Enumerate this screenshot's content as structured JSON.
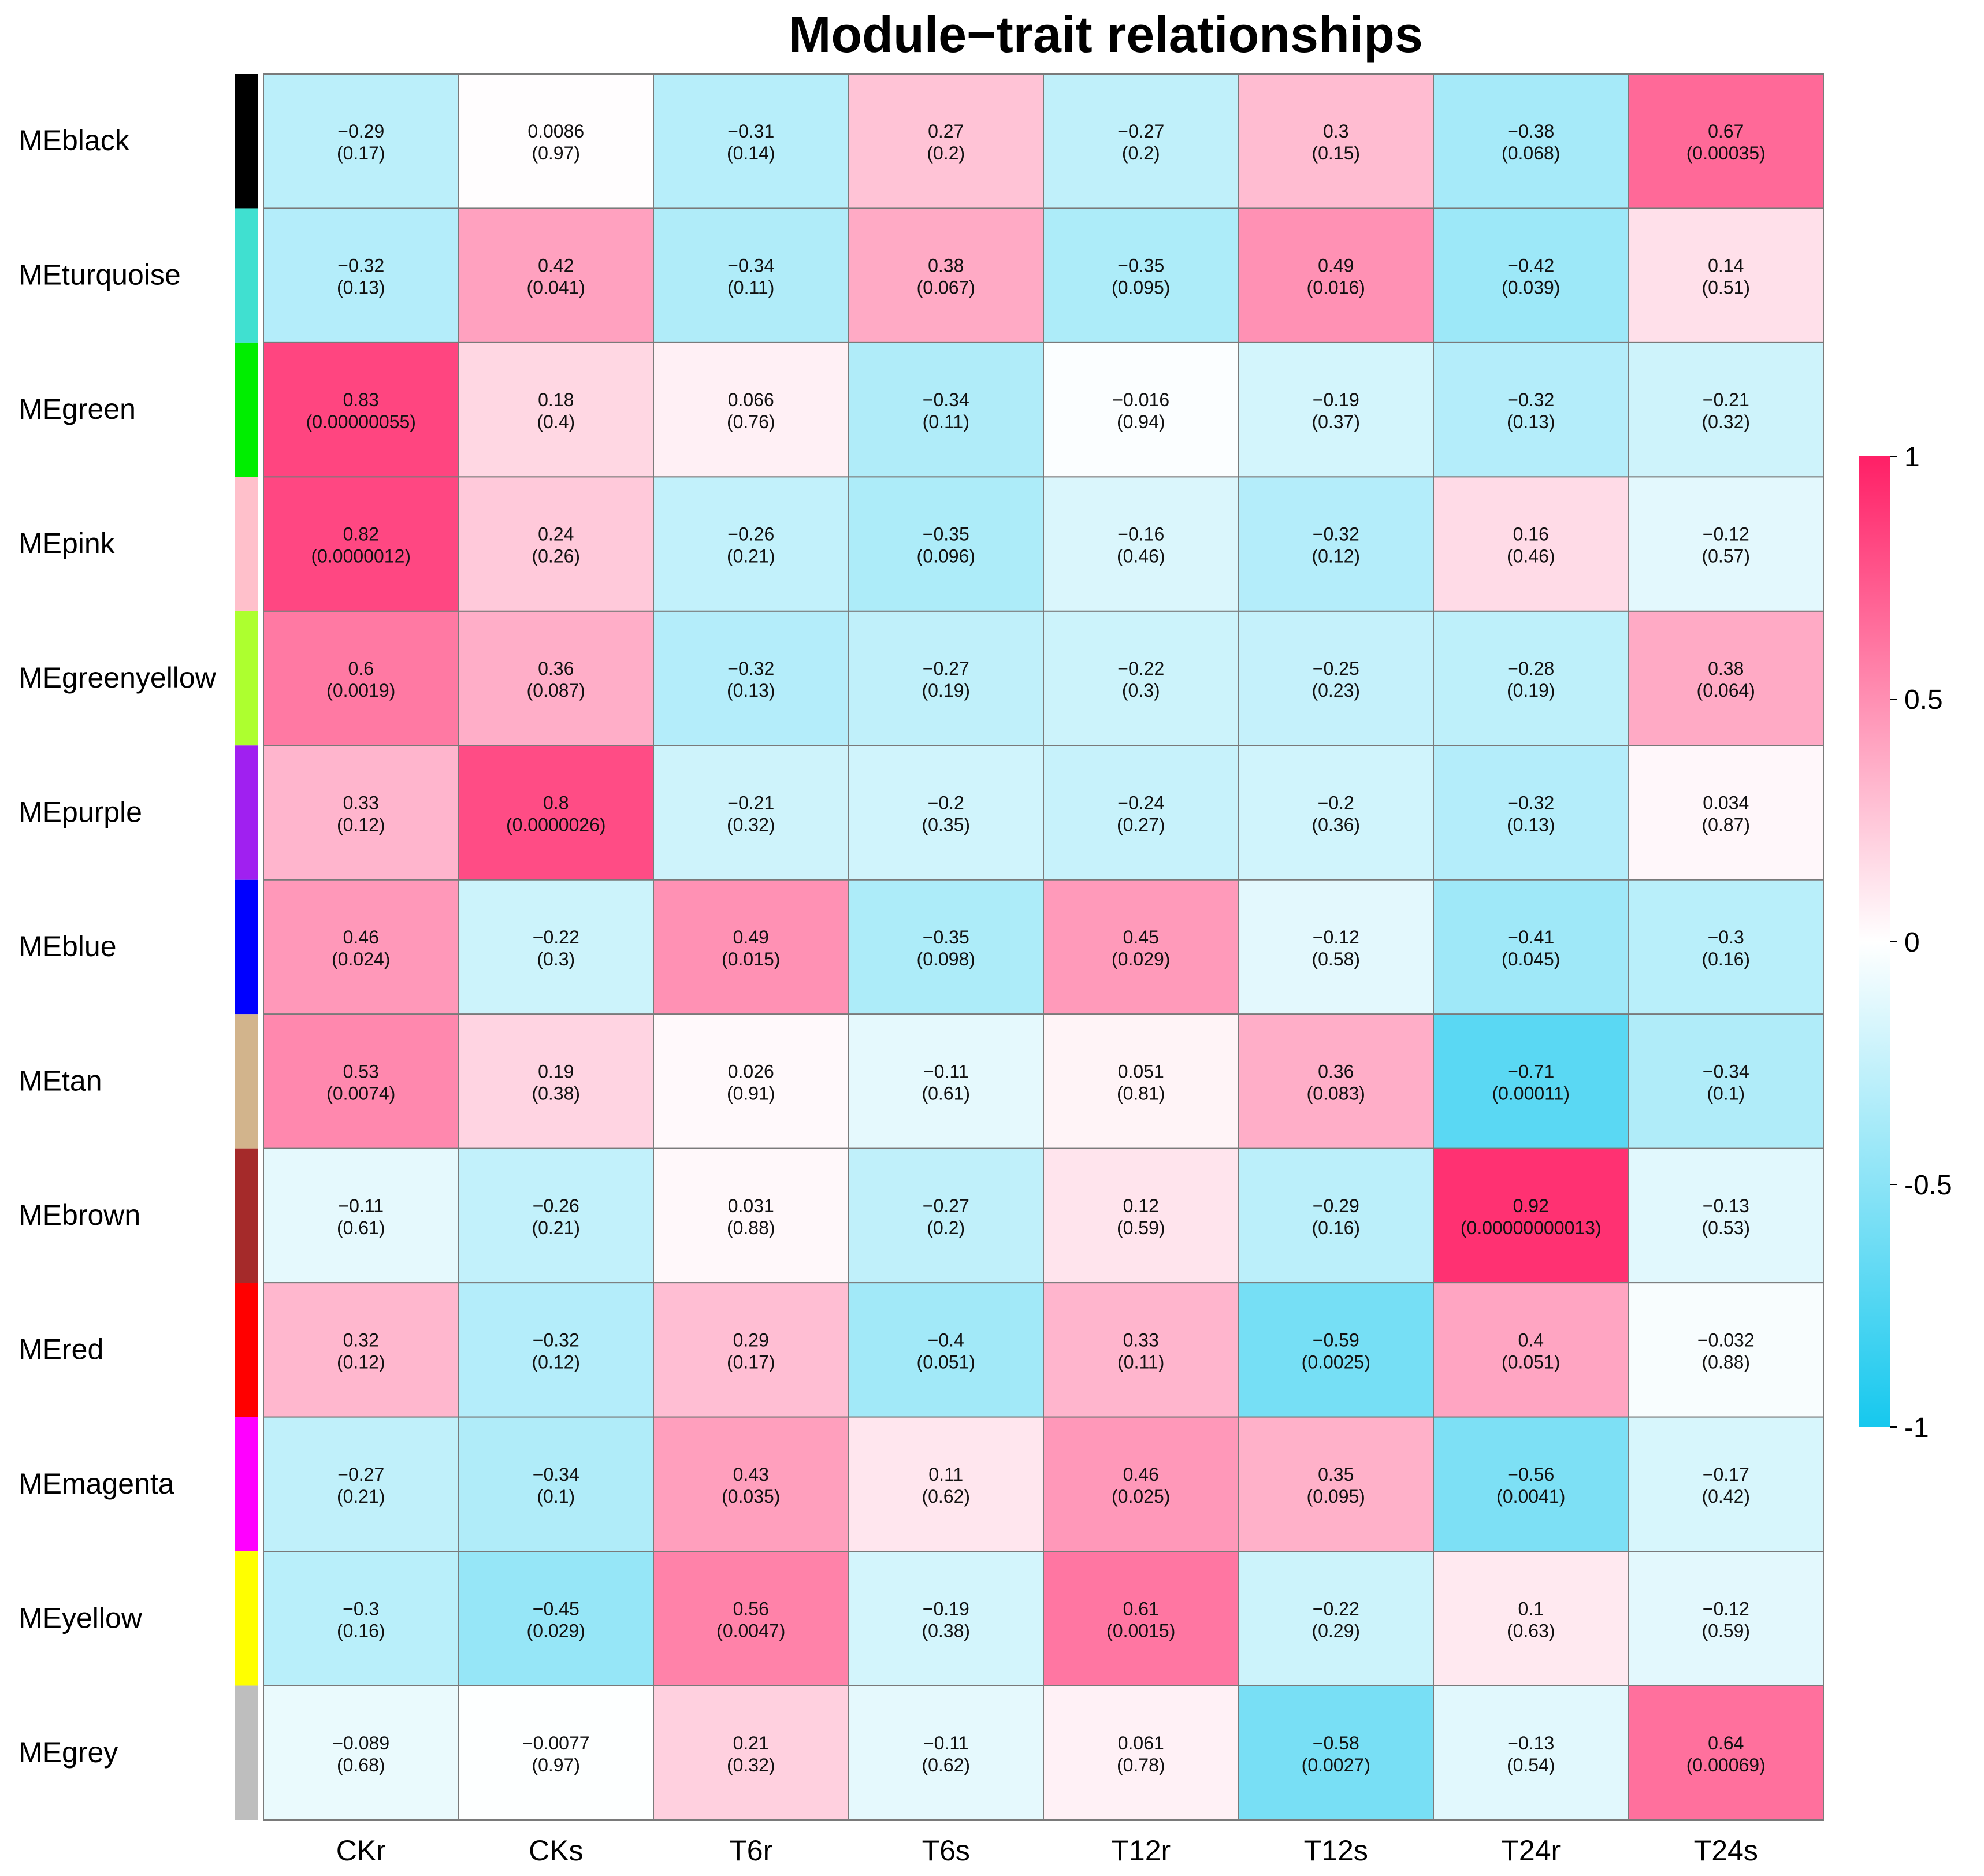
{
  "chart_data": {
    "type": "heatmap",
    "title": "Module−trait relationships",
    "xlabel": "",
    "ylabel": "",
    "columns": [
      "CKr",
      "CKs",
      "T6r",
      "T6s",
      "T12r",
      "T12s",
      "T24r",
      "T24s"
    ],
    "rows": [
      {
        "label": "MEblack",
        "color": "#000000",
        "corr": [
          -0.29,
          0.0086,
          -0.31,
          0.27,
          -0.27,
          0.3,
          -0.38,
          0.67
        ],
        "corr_text": [
          "−0.29",
          "0.0086",
          "−0.31",
          "0.27",
          "−0.27",
          "0.3",
          "−0.38",
          "0.67"
        ],
        "p_text": [
          "(0.17)",
          "(0.97)",
          "(0.14)",
          "(0.2)",
          "(0.2)",
          "(0.15)",
          "(0.068)",
          "(0.00035)"
        ]
      },
      {
        "label": "MEturquoise",
        "color": "#40E0D0",
        "corr": [
          -0.32,
          0.42,
          -0.34,
          0.38,
          -0.35,
          0.49,
          -0.42,
          0.14
        ],
        "corr_text": [
          "−0.32",
          "0.42",
          "−0.34",
          "0.38",
          "−0.35",
          "0.49",
          "−0.42",
          "0.14"
        ],
        "p_text": [
          "(0.13)",
          "(0.041)",
          "(0.11)",
          "(0.067)",
          "(0.095)",
          "(0.016)",
          "(0.039)",
          "(0.51)"
        ]
      },
      {
        "label": "MEgreen",
        "color": "#00EE00",
        "corr": [
          0.83,
          0.18,
          0.066,
          -0.34,
          -0.016,
          -0.19,
          -0.32,
          -0.21
        ],
        "corr_text": [
          "0.83",
          "0.18",
          "0.066",
          "−0.34",
          "−0.016",
          "−0.19",
          "−0.32",
          "−0.21"
        ],
        "p_text": [
          "(0.00000055)",
          "(0.4)",
          "(0.76)",
          "(0.11)",
          "(0.94)",
          "(0.37)",
          "(0.13)",
          "(0.32)"
        ]
      },
      {
        "label": "MEpink",
        "color": "#FFC0CB",
        "corr": [
          0.82,
          0.24,
          -0.26,
          -0.35,
          -0.16,
          -0.32,
          0.16,
          -0.12
        ],
        "corr_text": [
          "0.82",
          "0.24",
          "−0.26",
          "−0.35",
          "−0.16",
          "−0.32",
          "0.16",
          "−0.12"
        ],
        "p_text": [
          "(0.0000012)",
          "(0.26)",
          "(0.21)",
          "(0.096)",
          "(0.46)",
          "(0.12)",
          "(0.46)",
          "(0.57)"
        ]
      },
      {
        "label": "MEgreenyellow",
        "color": "#ADFF2F",
        "corr": [
          0.6,
          0.36,
          -0.32,
          -0.27,
          -0.22,
          -0.25,
          -0.28,
          0.38
        ],
        "corr_text": [
          "0.6",
          "0.36",
          "−0.32",
          "−0.27",
          "−0.22",
          "−0.25",
          "−0.28",
          "0.38"
        ],
        "p_text": [
          "(0.0019)",
          "(0.087)",
          "(0.13)",
          "(0.19)",
          "(0.3)",
          "(0.23)",
          "(0.19)",
          "(0.064)"
        ]
      },
      {
        "label": "MEpurple",
        "color": "#A020F0",
        "corr": [
          0.33,
          0.8,
          -0.21,
          -0.2,
          -0.24,
          -0.2,
          -0.32,
          0.034
        ],
        "corr_text": [
          "0.33",
          "0.8",
          "−0.21",
          "−0.2",
          "−0.24",
          "−0.2",
          "−0.32",
          "0.034"
        ],
        "p_text": [
          "(0.12)",
          "(0.0000026)",
          "(0.32)",
          "(0.35)",
          "(0.27)",
          "(0.36)",
          "(0.13)",
          "(0.87)"
        ]
      },
      {
        "label": "MEblue",
        "color": "#0000FF",
        "corr": [
          0.46,
          -0.22,
          0.49,
          -0.35,
          0.45,
          -0.12,
          -0.41,
          -0.3
        ],
        "corr_text": [
          "0.46",
          "−0.22",
          "0.49",
          "−0.35",
          "0.45",
          "−0.12",
          "−0.41",
          "−0.3"
        ],
        "p_text": [
          "(0.024)",
          "(0.3)",
          "(0.015)",
          "(0.098)",
          "(0.029)",
          "(0.58)",
          "(0.045)",
          "(0.16)"
        ]
      },
      {
        "label": "MEtan",
        "color": "#D2B48C",
        "corr": [
          0.53,
          0.19,
          0.026,
          -0.11,
          0.051,
          0.36,
          -0.71,
          -0.34
        ],
        "corr_text": [
          "0.53",
          "0.19",
          "0.026",
          "−0.11",
          "0.051",
          "0.36",
          "−0.71",
          "−0.34"
        ],
        "p_text": [
          "(0.0074)",
          "(0.38)",
          "(0.91)",
          "(0.61)",
          "(0.81)",
          "(0.083)",
          "(0.00011)",
          "(0.1)"
        ]
      },
      {
        "label": "MEbrown",
        "color": "#A52A2A",
        "corr": [
          -0.11,
          -0.26,
          0.031,
          -0.27,
          0.12,
          -0.29,
          0.92,
          -0.13
        ],
        "corr_text": [
          "−0.11",
          "−0.26",
          "0.031",
          "−0.27",
          "0.12",
          "−0.29",
          "0.92",
          "−0.13"
        ],
        "p_text": [
          "(0.61)",
          "(0.21)",
          "(0.88)",
          "(0.2)",
          "(0.59)",
          "(0.16)",
          "(0.00000000013)",
          "(0.53)"
        ]
      },
      {
        "label": "MEred",
        "color": "#FF0000",
        "corr": [
          0.32,
          -0.32,
          0.29,
          -0.4,
          0.33,
          -0.59,
          0.4,
          -0.032
        ],
        "corr_text": [
          "0.32",
          "−0.32",
          "0.29",
          "−0.4",
          "0.33",
          "−0.59",
          "0.4",
          "−0.032"
        ],
        "p_text": [
          "(0.12)",
          "(0.12)",
          "(0.17)",
          "(0.051)",
          "(0.11)",
          "(0.0025)",
          "(0.051)",
          "(0.88)"
        ]
      },
      {
        "label": "MEmagenta",
        "color": "#FF00FF",
        "corr": [
          -0.27,
          -0.34,
          0.43,
          0.11,
          0.46,
          0.35,
          -0.56,
          -0.17
        ],
        "corr_text": [
          "−0.27",
          "−0.34",
          "0.43",
          "0.11",
          "0.46",
          "0.35",
          "−0.56",
          "−0.17"
        ],
        "p_text": [
          "(0.21)",
          "(0.1)",
          "(0.035)",
          "(0.62)",
          "(0.025)",
          "(0.095)",
          "(0.0041)",
          "(0.42)"
        ]
      },
      {
        "label": "MEyellow",
        "color": "#FFFF00",
        "corr": [
          -0.3,
          -0.45,
          0.56,
          -0.19,
          0.61,
          -0.22,
          0.1,
          -0.12
        ],
        "corr_text": [
          "−0.3",
          "−0.45",
          "0.56",
          "−0.19",
          "0.61",
          "−0.22",
          "0.1",
          "−0.12"
        ],
        "p_text": [
          "(0.16)",
          "(0.029)",
          "(0.0047)",
          "(0.38)",
          "(0.0015)",
          "(0.29)",
          "(0.63)",
          "(0.59)"
        ]
      },
      {
        "label": "MEgrey",
        "color": "#BEBEBE",
        "corr": [
          -0.089,
          -0.0077,
          0.21,
          -0.11,
          0.061,
          -0.58,
          -0.13,
          0.64
        ],
        "corr_text": [
          "−0.089",
          "−0.0077",
          "0.21",
          "−0.11",
          "0.061",
          "−0.58",
          "−0.13",
          "0.64"
        ],
        "p_text": [
          "(0.68)",
          "(0.97)",
          "(0.32)",
          "(0.62)",
          "(0.78)",
          "(0.0027)",
          "(0.54)",
          "(0.00069)"
        ]
      }
    ],
    "color_scale": {
      "range": [
        -1,
        1
      ],
      "low_color": "#16C8EE",
      "mid_color": "#FFFFFF",
      "high_color": "#FF1F66",
      "ticks": [
        1,
        0.5,
        0,
        -0.5,
        -1
      ],
      "tick_labels": [
        "1",
        "0.5",
        "0",
        "-0.5",
        "-1"
      ],
      "placement": "right"
    }
  }
}
